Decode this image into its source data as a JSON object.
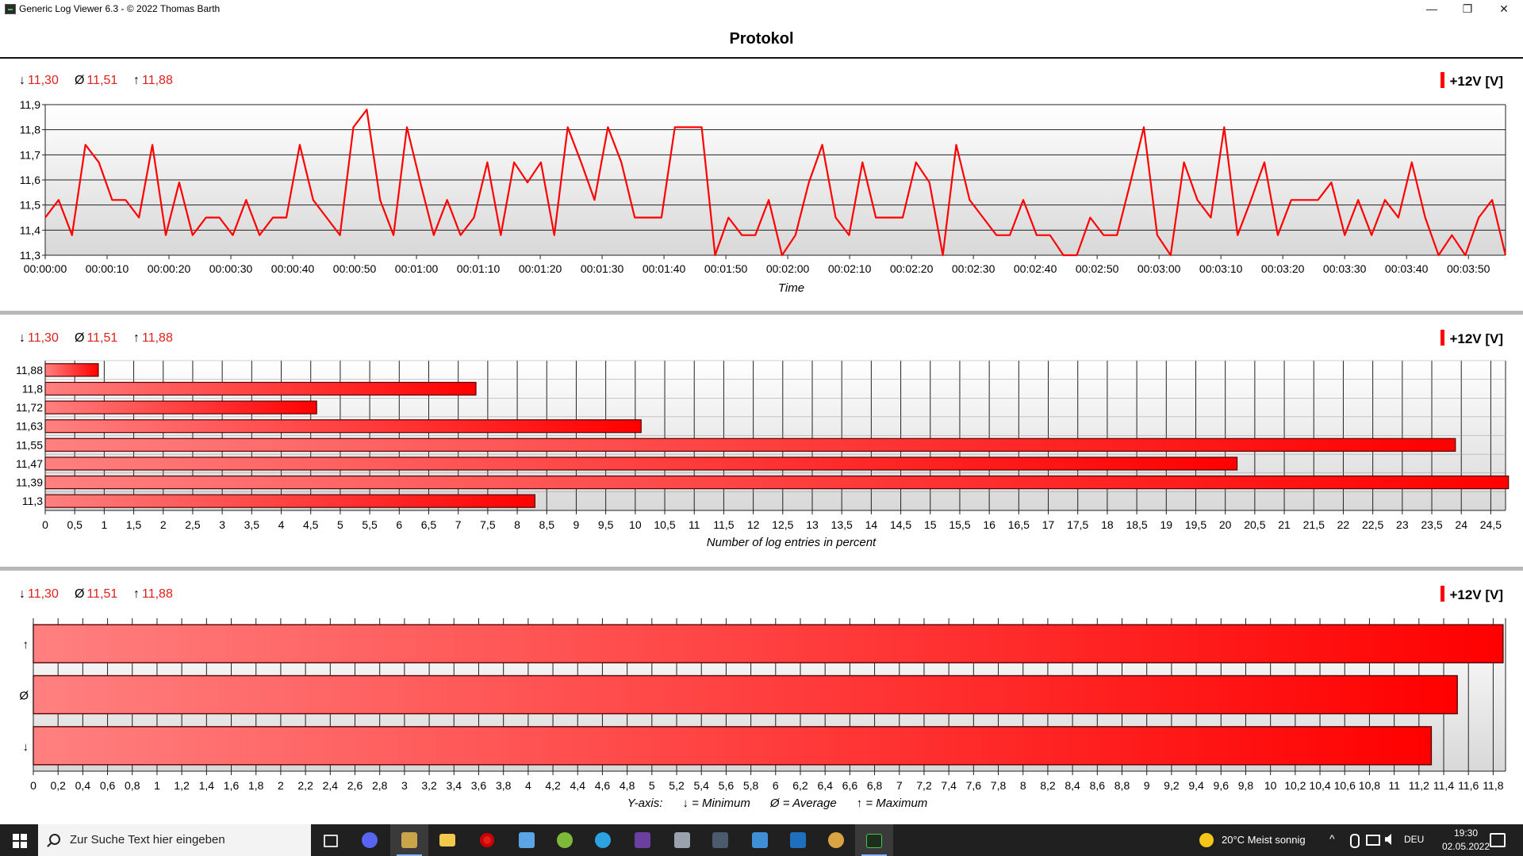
{
  "window": {
    "title": "Generic Log Viewer 6.3 - © 2022 Thomas Barth",
    "min_glyph": "—",
    "max_glyph": "❐",
    "close_glyph": "✕"
  },
  "page_title": "Protokol",
  "stats": {
    "min": "11,30",
    "avg": "11,51",
    "max": "11,88",
    "min_sym": "↓",
    "avg_sym": "Ø",
    "max_sym": "↑"
  },
  "legend_label": "+12V [V]",
  "colors": {
    "series": "#ff0000",
    "stat_text": "#e0201c",
    "bar_light": "#ff8080",
    "bar_dark": "#ff0000"
  },
  "chart_data": [
    {
      "type": "line",
      "xlabel": "Time",
      "ylabel": "",
      "ylim": [
        11.3,
        11.9
      ],
      "y_ticks": [
        "11,3",
        "11,4",
        "11,5",
        "11,6",
        "11,7",
        "11,8",
        "11,9"
      ],
      "x_ticks": [
        "00:00:00",
        "00:00:10",
        "00:00:20",
        "00:00:30",
        "00:00:40",
        "00:00:50",
        "00:01:00",
        "00:01:10",
        "00:01:20",
        "00:01:30",
        "00:01:40",
        "00:01:50",
        "00:02:00",
        "00:02:10",
        "00:02:20",
        "00:02:30",
        "00:02:40",
        "00:02:50",
        "00:03:00",
        "00:03:10",
        "00:03:20",
        "00:03:30",
        "00:03:40",
        "00:03:50"
      ],
      "x_seconds_range": [
        0,
        236
      ],
      "grid": true,
      "legend": "top-right",
      "series": [
        {
          "name": "+12V [V]",
          "values": [
            11.45,
            11.52,
            11.38,
            11.74,
            11.67,
            11.52,
            11.52,
            11.45,
            11.74,
            11.38,
            11.59,
            11.38,
            11.45,
            11.45,
            11.38,
            11.52,
            11.38,
            11.45,
            11.45,
            11.74,
            11.52,
            11.45,
            11.38,
            11.81,
            11.88,
            11.52,
            11.38,
            11.81,
            11.59,
            11.38,
            11.52,
            11.38,
            11.45,
            11.67,
            11.38,
            11.67,
            11.59,
            11.67,
            11.38,
            11.81,
            11.67,
            11.52,
            11.81,
            11.67,
            11.45,
            11.45,
            11.45,
            11.81,
            11.81,
            11.81,
            11.3,
            11.45,
            11.38,
            11.38,
            11.52,
            11.3,
            11.38,
            11.59,
            11.74,
            11.45,
            11.38,
            11.67,
            11.45,
            11.45,
            11.45,
            11.67,
            11.59,
            11.3,
            11.74,
            11.52,
            11.45,
            11.38,
            11.38,
            11.52,
            11.38,
            11.38,
            11.3,
            11.3,
            11.45,
            11.38,
            11.38,
            11.59,
            11.81,
            11.38,
            11.3,
            11.67,
            11.52,
            11.45,
            11.81,
            11.38,
            11.52,
            11.67,
            11.38,
            11.52,
            11.52,
            11.52,
            11.59,
            11.38,
            11.52,
            11.38,
            11.52,
            11.45,
            11.67,
            11.45,
            11.3,
            11.38,
            11.3,
            11.45,
            11.52,
            11.3
          ]
        }
      ]
    },
    {
      "type": "bar",
      "orientation": "horizontal",
      "xlabel": "Number of log entries in percent",
      "ylabel": "",
      "xlim": [
        0,
        24.75
      ],
      "x_ticks": [
        "0",
        "0,5",
        "1",
        "1,5",
        "2",
        "2,5",
        "3",
        "3,5",
        "4",
        "4,5",
        "5",
        "5,5",
        "6",
        "6,5",
        "7",
        "7,5",
        "8",
        "8,5",
        "9",
        "9,5",
        "10",
        "10,5",
        "11",
        "11,5",
        "12",
        "12,5",
        "13",
        "13,5",
        "14",
        "14,5",
        "15",
        "15,5",
        "16",
        "16,5",
        "17",
        "17,5",
        "18",
        "18,5",
        "19",
        "19,5",
        "20",
        "20,5",
        "21",
        "21,5",
        "22",
        "22,5",
        "23",
        "23,5",
        "24",
        "24,5"
      ],
      "categories": [
        "11,88",
        "11,8",
        "11,72",
        "11,63",
        "11,55",
        "11,47",
        "11,39",
        "11,3"
      ],
      "values": [
        0.9,
        7.3,
        4.6,
        10.1,
        23.9,
        20.2,
        24.8,
        8.3
      ],
      "grid": true,
      "legend": "top-right"
    },
    {
      "type": "bar",
      "orientation": "horizontal",
      "xlabel": "",
      "ylabel": "",
      "xlim": [
        0,
        11.9
      ],
      "x_ticks": [
        "0",
        "0,2",
        "0,4",
        "0,6",
        "0,8",
        "1",
        "1,2",
        "1,4",
        "1,6",
        "1,8",
        "2",
        "2,2",
        "2,4",
        "2,6",
        "2,8",
        "3",
        "3,2",
        "3,4",
        "3,6",
        "3,8",
        "4",
        "4,2",
        "4,4",
        "4,6",
        "4,8",
        "5",
        "5,2",
        "5,4",
        "5,6",
        "5,8",
        "6",
        "6,2",
        "6,4",
        "6,6",
        "6,8",
        "7",
        "7,2",
        "7,4",
        "7,6",
        "7,8",
        "8",
        "8,2",
        "8,4",
        "8,6",
        "8,8",
        "9",
        "9,2",
        "9,4",
        "9,6",
        "9,8",
        "10",
        "10,2",
        "10,4",
        "10,6",
        "10,8",
        "11",
        "11,2",
        "11,4",
        "11,6",
        "11,8"
      ],
      "categories": [
        "↑",
        "Ø",
        "↓"
      ],
      "values": [
        11.88,
        11.51,
        11.3
      ],
      "axis_note": "Y-axis:      ↓ = Minimum      Ø = Average      ↑ = Maximum",
      "grid": true,
      "legend": "top-right"
    }
  ],
  "taskbar": {
    "search_placeholder": "Zur Suche Text hier eingeben",
    "weather": "20°C  Meist sonnig",
    "lang": "DEU",
    "time": "19:30",
    "date": "02.05.2022",
    "tray_chevron": "^"
  }
}
